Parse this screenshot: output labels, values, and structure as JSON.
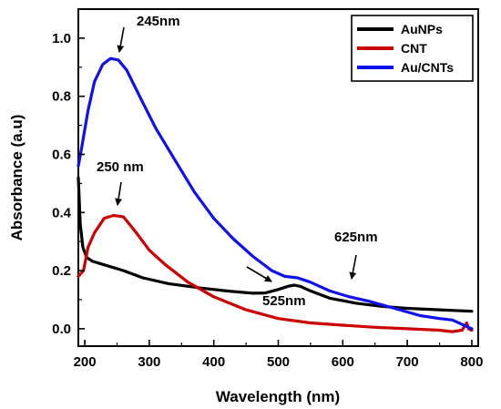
{
  "chart_data": {
    "type": "line",
    "xlabel": "Wavelength (nm)",
    "ylabel": "Absorbance (a.u)",
    "xlim": [
      190,
      810
    ],
    "ylim": [
      -0.06,
      1.1
    ],
    "x_ticks": [
      200,
      300,
      400,
      500,
      600,
      700,
      800
    ],
    "x_tick_labels": [
      "200",
      "300",
      "400",
      "500",
      "600",
      "700",
      "800"
    ],
    "y_ticks": [
      0.0,
      0.2,
      0.4,
      0.6,
      0.8,
      1.0
    ],
    "y_tick_labels": [
      "0.0",
      "0.2",
      "0.4",
      "0.6",
      "0.8",
      "1.0"
    ],
    "legend_position": "top-right",
    "grid": false,
    "series": [
      {
        "name": "AuNPs",
        "color": "#000000",
        "points": [
          [
            190,
            0.52
          ],
          [
            193,
            0.36
          ],
          [
            197,
            0.28
          ],
          [
            203,
            0.245
          ],
          [
            212,
            0.232
          ],
          [
            230,
            0.22
          ],
          [
            260,
            0.2
          ],
          [
            290,
            0.175
          ],
          [
            330,
            0.155
          ],
          [
            380,
            0.14
          ],
          [
            420,
            0.13
          ],
          [
            460,
            0.122
          ],
          [
            480,
            0.123
          ],
          [
            500,
            0.135
          ],
          [
            515,
            0.146
          ],
          [
            525,
            0.15
          ],
          [
            535,
            0.145
          ],
          [
            550,
            0.13
          ],
          [
            580,
            0.105
          ],
          [
            620,
            0.088
          ],
          [
            660,
            0.077
          ],
          [
            700,
            0.07
          ],
          [
            750,
            0.065
          ],
          [
            800,
            0.06
          ]
        ]
      },
      {
        "name": "CNT",
        "color": "#cc0000",
        "points": [
          [
            190,
            0.18
          ],
          [
            198,
            0.2
          ],
          [
            205,
            0.28
          ],
          [
            215,
            0.33
          ],
          [
            230,
            0.38
          ],
          [
            245,
            0.39
          ],
          [
            260,
            0.385
          ],
          [
            280,
            0.33
          ],
          [
            300,
            0.27
          ],
          [
            325,
            0.22
          ],
          [
            360,
            0.16
          ],
          [
            400,
            0.11
          ],
          [
            450,
            0.065
          ],
          [
            500,
            0.035
          ],
          [
            550,
            0.02
          ],
          [
            600,
            0.012
          ],
          [
            650,
            0.005
          ],
          [
            700,
            0.0
          ],
          [
            750,
            -0.005
          ],
          [
            770,
            -0.01
          ],
          [
            785,
            -0.005
          ],
          [
            792,
            0.02
          ],
          [
            795,
            0.0
          ],
          [
            800,
            -0.005
          ]
        ]
      },
      {
        "name": "Au/CNTs",
        "color": "#1010ee",
        "points": [
          [
            190,
            0.56
          ],
          [
            195,
            0.62
          ],
          [
            205,
            0.75
          ],
          [
            215,
            0.85
          ],
          [
            228,
            0.91
          ],
          [
            240,
            0.93
          ],
          [
            252,
            0.925
          ],
          [
            265,
            0.89
          ],
          [
            285,
            0.8
          ],
          [
            310,
            0.69
          ],
          [
            340,
            0.58
          ],
          [
            370,
            0.47
          ],
          [
            400,
            0.38
          ],
          [
            430,
            0.31
          ],
          [
            460,
            0.25
          ],
          [
            490,
            0.2
          ],
          [
            510,
            0.18
          ],
          [
            530,
            0.175
          ],
          [
            550,
            0.16
          ],
          [
            580,
            0.13
          ],
          [
            610,
            0.11
          ],
          [
            640,
            0.095
          ],
          [
            680,
            0.07
          ],
          [
            720,
            0.045
          ],
          [
            750,
            0.035
          ],
          [
            770,
            0.03
          ],
          [
            790,
            0.01
          ],
          [
            800,
            0.0
          ]
        ]
      }
    ],
    "annotations": [
      {
        "text": "245nm",
        "x": 245,
        "y": 0.93
      },
      {
        "text": "250 nm",
        "x": 250,
        "y": 0.39
      },
      {
        "text": "625nm",
        "x": 625,
        "y": 0.145
      },
      {
        "text": "525nm",
        "x": 525,
        "y": 0.15
      }
    ]
  }
}
